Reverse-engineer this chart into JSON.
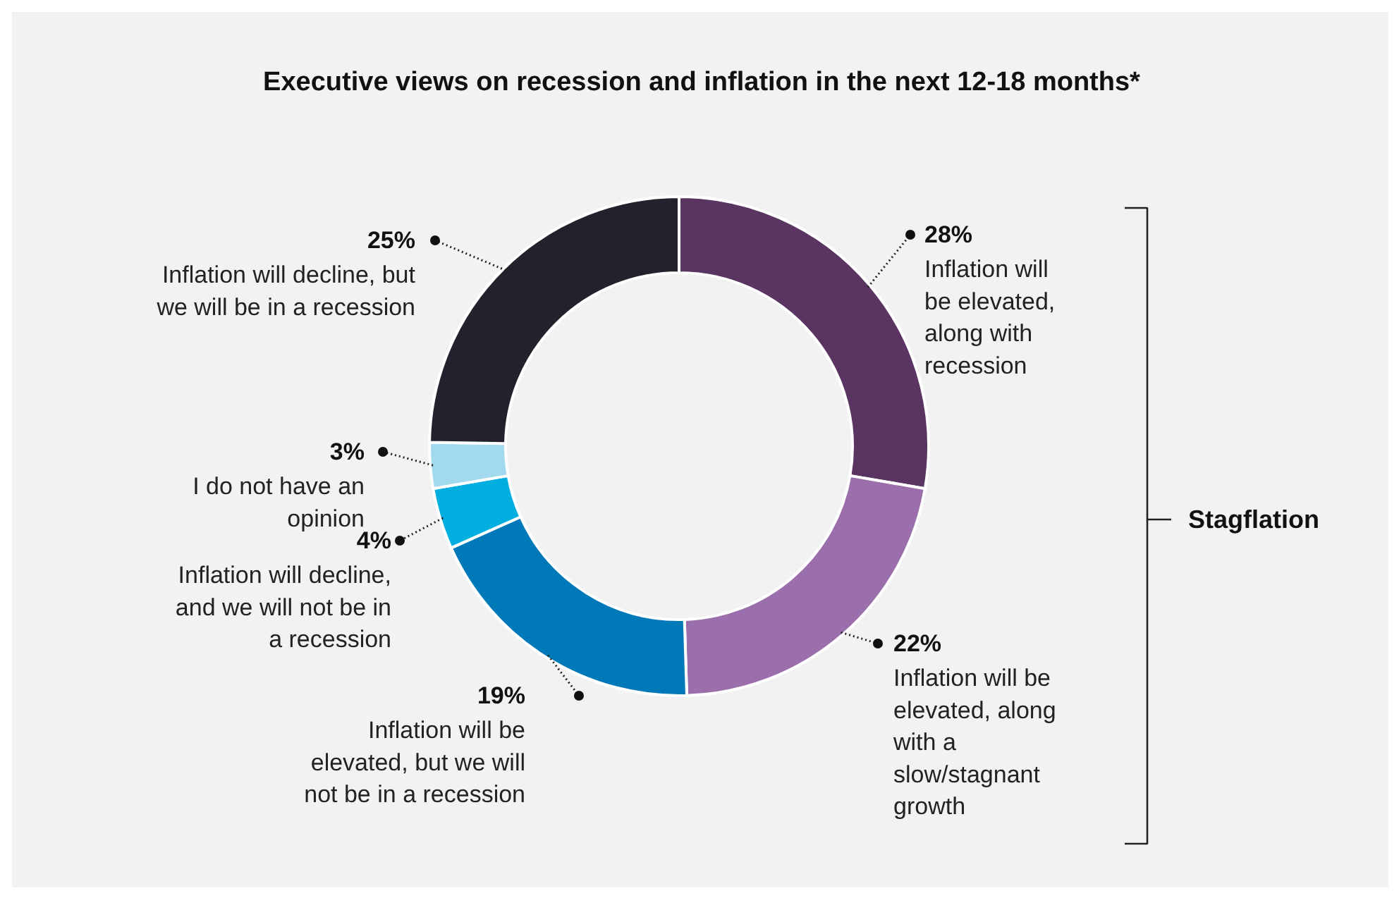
{
  "chart_data": {
    "type": "donut",
    "title": "Executive views on recession and inflation in the next 12-18 months*",
    "categories": [
      "Inflation will\nbe elevated,\nalong with\nrecession",
      "Inflation will be\nelevated, along\nwith a\nslow/stagnant\ngrowth",
      "Inflation will be\nelevated, but we will\nnot be in a recession",
      "Inflation will decline,\nand we will not be in\na recession",
      "I do not have an\nopinion",
      "Inflation will decline, but\nwe will be in a recession"
    ],
    "values": [
      28,
      22,
      19,
      4,
      3,
      25
    ],
    "value_labels": [
      "28%",
      "22%",
      "19%",
      "4%",
      "3%",
      "25%"
    ],
    "colors": [
      "#5a3562",
      "#9b6fab",
      "#0079b8",
      "#00aee0",
      "#a3d9ee",
      "#22212c"
    ],
    "annotations": [
      "Stagflation"
    ]
  }
}
